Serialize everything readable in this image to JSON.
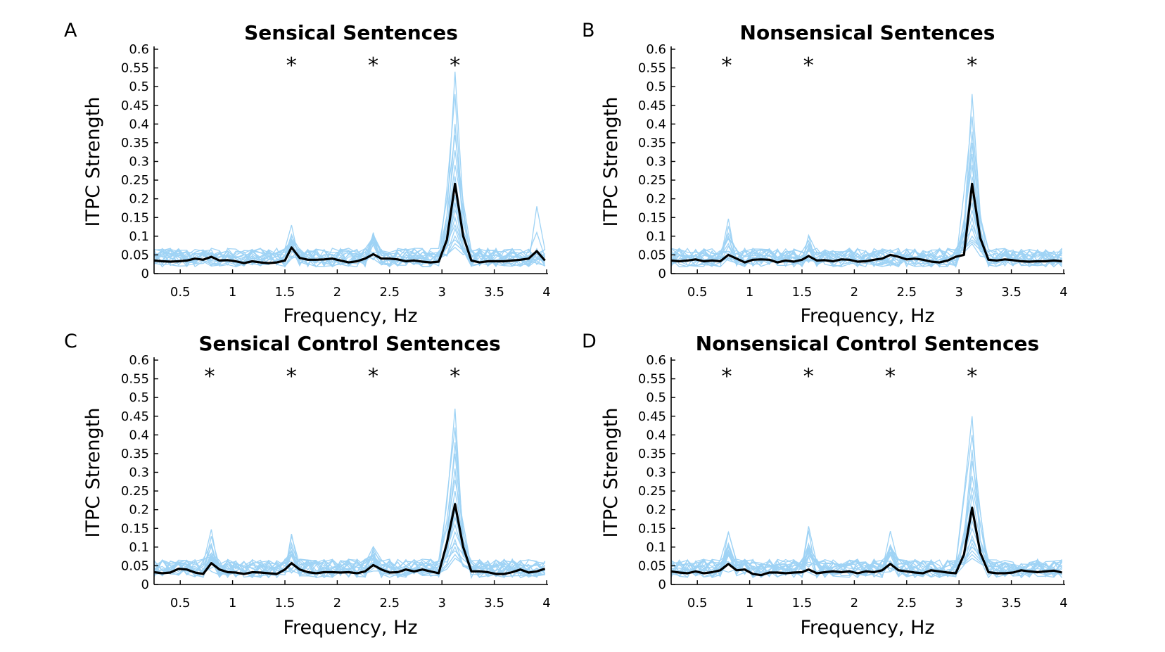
{
  "colors": {
    "subject_line": "#9fd3f5",
    "mean_line": "#000000",
    "axis": "#000000"
  },
  "chart_data": [
    {
      "type": "line",
      "panel_label": "A",
      "title": "Sensical Sentences",
      "xlabel": "Frequency, Hz",
      "ylabel": "ITPC Strength",
      "xlim": [
        0.25,
        4.0
      ],
      "ylim": [
        0,
        0.6
      ],
      "xticks": [
        "0.5",
        "1",
        "1.5",
        "2",
        "2.5",
        "3",
        "3.5",
        "4"
      ],
      "yticks": [
        "0",
        "0.05",
        "0.1",
        "0.15",
        "0.2",
        "0.25",
        "0.3",
        "0.35",
        "0.4",
        "0.45",
        "0.5",
        "0.55",
        "0.6"
      ],
      "grid": false,
      "significance_marks": [
        1.5625,
        2.34375,
        3.125
      ],
      "significance_symbol": "*",
      "n_subject_series": 18,
      "subject_peak_values": [
        0.54,
        0.48,
        0.4,
        0.37,
        0.33,
        0.29,
        0.26,
        0.23,
        0.21,
        0.19,
        0.17,
        0.15,
        0.13,
        0.12,
        0.1,
        0.09,
        0.08,
        0.07
      ],
      "mean_series": {
        "x": [
          0.25,
          0.328,
          0.406,
          0.484,
          0.563,
          0.641,
          0.719,
          0.797,
          0.875,
          0.953,
          1.031,
          1.109,
          1.188,
          1.266,
          1.344,
          1.422,
          1.5,
          1.563,
          1.641,
          1.719,
          1.797,
          1.875,
          1.953,
          2.031,
          2.109,
          2.188,
          2.266,
          2.344,
          2.422,
          2.5,
          2.578,
          2.656,
          2.734,
          2.813,
          2.891,
          2.969,
          3.047,
          3.125,
          3.203,
          3.281,
          3.359,
          3.438,
          3.516,
          3.594,
          3.672,
          3.75,
          3.828,
          3.906,
          3.984
        ],
        "y": [
          0.035,
          0.033,
          0.032,
          0.033,
          0.035,
          0.04,
          0.037,
          0.045,
          0.035,
          0.036,
          0.033,
          0.028,
          0.033,
          0.03,
          0.028,
          0.03,
          0.035,
          0.07,
          0.042,
          0.037,
          0.037,
          0.038,
          0.04,
          0.035,
          0.03,
          0.033,
          0.04,
          0.052,
          0.04,
          0.04,
          0.038,
          0.033,
          0.035,
          0.032,
          0.03,
          0.032,
          0.09,
          0.24,
          0.1,
          0.035,
          0.03,
          0.033,
          0.033,
          0.033,
          0.035,
          0.037,
          0.04,
          0.06,
          0.035
        ]
      }
    },
    {
      "type": "line",
      "panel_label": "B",
      "title": "Nonsensical Sentences",
      "xlabel": "Frequency, Hz",
      "ylabel": "ITPC Strength",
      "xlim": [
        0.25,
        4.0
      ],
      "ylim": [
        0,
        0.6
      ],
      "xticks": [
        "0.5",
        "1",
        "1.5",
        "2",
        "2.5",
        "3",
        "3.5",
        "4"
      ],
      "yticks": [
        "0",
        "0.05",
        "0.1",
        "0.15",
        "0.2",
        "0.25",
        "0.3",
        "0.35",
        "0.4",
        "0.45",
        "0.5",
        "0.55",
        "0.6"
      ],
      "grid": false,
      "significance_marks": [
        0.78125,
        1.5625,
        3.125
      ],
      "significance_symbol": "*",
      "n_subject_series": 18,
      "subject_peak_values": [
        0.48,
        0.42,
        0.38,
        0.35,
        0.32,
        0.29,
        0.26,
        0.23,
        0.21,
        0.19,
        0.17,
        0.15,
        0.13,
        0.12,
        0.1,
        0.09,
        0.085,
        0.08
      ],
      "mean_series": {
        "x": [
          0.25,
          0.328,
          0.406,
          0.484,
          0.563,
          0.641,
          0.719,
          0.797,
          0.875,
          0.953,
          1.031,
          1.109,
          1.188,
          1.266,
          1.344,
          1.422,
          1.5,
          1.563,
          1.641,
          1.719,
          1.797,
          1.875,
          1.953,
          2.031,
          2.109,
          2.188,
          2.266,
          2.344,
          2.422,
          2.5,
          2.578,
          2.656,
          2.734,
          2.813,
          2.891,
          2.969,
          3.047,
          3.125,
          3.203,
          3.281,
          3.359,
          3.438,
          3.516,
          3.594,
          3.672,
          3.75,
          3.828,
          3.906,
          3.984
        ],
        "y": [
          0.035,
          0.033,
          0.035,
          0.038,
          0.033,
          0.035,
          0.033,
          0.05,
          0.04,
          0.03,
          0.037,
          0.038,
          0.037,
          0.03,
          0.035,
          0.032,
          0.037,
          0.047,
          0.035,
          0.036,
          0.033,
          0.038,
          0.037,
          0.032,
          0.033,
          0.037,
          0.04,
          0.05,
          0.045,
          0.038,
          0.04,
          0.037,
          0.032,
          0.03,
          0.035,
          0.045,
          0.05,
          0.24,
          0.095,
          0.037,
          0.035,
          0.038,
          0.036,
          0.033,
          0.032,
          0.033,
          0.033,
          0.035,
          0.033
        ]
      }
    },
    {
      "type": "line",
      "panel_label": "C",
      "title": "Sensical Control Sentences",
      "xlabel": "Frequency, Hz",
      "ylabel": "ITPC Strength",
      "xlim": [
        0.25,
        4.0
      ],
      "ylim": [
        0,
        0.6
      ],
      "xticks": [
        "0.5",
        "1",
        "1.5",
        "2",
        "2.5",
        "3",
        "3.5",
        "4"
      ],
      "yticks": [
        "0",
        "0.05",
        "0.1",
        "0.15",
        "0.2",
        "0.25",
        "0.3",
        "0.35",
        "0.4",
        "0.45",
        "0.5",
        "0.55",
        "0.6"
      ],
      "grid": false,
      "significance_marks": [
        0.78125,
        1.5625,
        2.34375,
        3.125
      ],
      "significance_symbol": "*",
      "n_subject_series": 18,
      "subject_peak_values": [
        0.47,
        0.42,
        0.38,
        0.35,
        0.31,
        0.28,
        0.25,
        0.22,
        0.2,
        0.18,
        0.16,
        0.14,
        0.12,
        0.11,
        0.1,
        0.09,
        0.08,
        0.07
      ],
      "mean_series": {
        "x": [
          0.25,
          0.328,
          0.406,
          0.484,
          0.563,
          0.641,
          0.719,
          0.797,
          0.875,
          0.953,
          1.031,
          1.109,
          1.188,
          1.266,
          1.344,
          1.422,
          1.5,
          1.563,
          1.641,
          1.719,
          1.797,
          1.875,
          1.953,
          2.031,
          2.109,
          2.188,
          2.266,
          2.344,
          2.422,
          2.5,
          2.578,
          2.656,
          2.734,
          2.813,
          2.891,
          2.969,
          3.047,
          3.125,
          3.203,
          3.281,
          3.359,
          3.438,
          3.516,
          3.594,
          3.672,
          3.75,
          3.828,
          3.906,
          3.984
        ],
        "y": [
          0.033,
          0.03,
          0.032,
          0.042,
          0.04,
          0.032,
          0.028,
          0.057,
          0.04,
          0.033,
          0.032,
          0.028,
          0.033,
          0.032,
          0.03,
          0.028,
          0.04,
          0.057,
          0.04,
          0.033,
          0.03,
          0.033,
          0.033,
          0.032,
          0.033,
          0.03,
          0.035,
          0.052,
          0.04,
          0.032,
          0.033,
          0.04,
          0.035,
          0.04,
          0.035,
          0.03,
          0.11,
          0.215,
          0.1,
          0.035,
          0.035,
          0.033,
          0.028,
          0.028,
          0.033,
          0.04,
          0.032,
          0.035,
          0.042
        ]
      }
    },
    {
      "type": "line",
      "panel_label": "D",
      "title": "Nonsensical Control Sentences",
      "xlabel": "Frequency, Hz",
      "ylabel": "ITPC Strength",
      "xlim": [
        0.25,
        4.0
      ],
      "ylim": [
        0,
        0.6
      ],
      "xticks": [
        "0.5",
        "1",
        "1.5",
        "2",
        "2.5",
        "3",
        "3.5",
        "4"
      ],
      "yticks": [
        "0",
        "0.05",
        "0.1",
        "0.15",
        "0.2",
        "0.25",
        "0.3",
        "0.35",
        "0.4",
        "0.45",
        "0.5",
        "0.55",
        "0.6"
      ],
      "grid": false,
      "significance_marks": [
        0.78125,
        1.5625,
        2.34375,
        3.125
      ],
      "significance_symbol": "*",
      "n_subject_series": 18,
      "subject_peak_values": [
        0.45,
        0.4,
        0.36,
        0.33,
        0.29,
        0.26,
        0.24,
        0.21,
        0.19,
        0.17,
        0.15,
        0.13,
        0.12,
        0.11,
        0.1,
        0.09,
        0.08,
        0.07
      ],
      "mean_series": {
        "x": [
          0.25,
          0.328,
          0.406,
          0.484,
          0.563,
          0.641,
          0.719,
          0.797,
          0.875,
          0.953,
          1.031,
          1.109,
          1.188,
          1.266,
          1.344,
          1.422,
          1.5,
          1.563,
          1.641,
          1.719,
          1.797,
          1.875,
          1.953,
          2.031,
          2.109,
          2.188,
          2.266,
          2.344,
          2.422,
          2.5,
          2.578,
          2.656,
          2.734,
          2.813,
          2.891,
          2.969,
          3.047,
          3.125,
          3.203,
          3.281,
          3.359,
          3.438,
          3.516,
          3.594,
          3.672,
          3.75,
          3.828,
          3.906,
          3.984
        ],
        "y": [
          0.035,
          0.032,
          0.03,
          0.035,
          0.03,
          0.033,
          0.038,
          0.055,
          0.038,
          0.04,
          0.028,
          0.025,
          0.032,
          0.032,
          0.03,
          0.032,
          0.033,
          0.04,
          0.03,
          0.033,
          0.035,
          0.033,
          0.035,
          0.03,
          0.035,
          0.033,
          0.038,
          0.055,
          0.038,
          0.035,
          0.032,
          0.03,
          0.038,
          0.035,
          0.032,
          0.03,
          0.08,
          0.205,
          0.085,
          0.033,
          0.03,
          0.03,
          0.032,
          0.038,
          0.035,
          0.033,
          0.035,
          0.037,
          0.032
        ]
      }
    }
  ]
}
